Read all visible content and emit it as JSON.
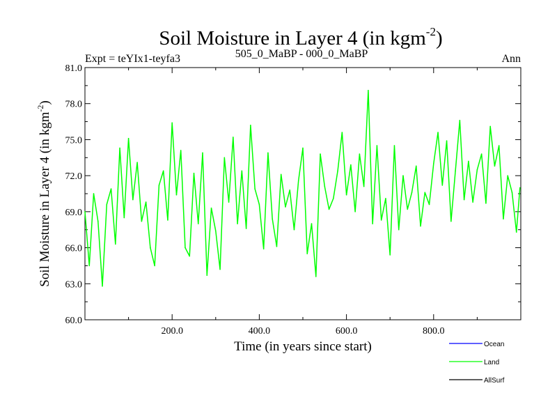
{
  "chart_data": {
    "type": "line",
    "title": "Soil Moisture in Layer 4 (in kgm",
    "title_superscript": "-2",
    "title_close": ")",
    "subtitle_left": "Expt = teYIx1-teyfa3",
    "subtitle_center": "505_0_MaBP - 000_0_MaBP",
    "subtitle_right": "Ann",
    "xlabel": "Time (in years since start)",
    "ylabel": "Soil Moisture in Layer 4 (in kgm",
    "ylabel_superscript": "-2",
    "ylabel_close": ")",
    "xlim": [
      0,
      1000
    ],
    "ylim": [
      60,
      81
    ],
    "xticks": [
      200,
      400,
      600,
      800
    ],
    "xtick_labels": [
      "200.0",
      "400.0",
      "600.0",
      "800.0"
    ],
    "yticks": [
      60,
      63,
      66,
      69,
      72,
      75,
      78,
      81
    ],
    "ytick_labels": [
      "60.0",
      "63.0",
      "66.0",
      "69.0",
      "72.0",
      "75.0",
      "78.0",
      "81.0"
    ],
    "series": [
      {
        "name": "Land",
        "color": "#00ff00",
        "x": [
          0,
          10,
          20,
          30,
          40,
          50,
          60,
          70,
          80,
          90,
          100,
          110,
          120,
          130,
          140,
          150,
          160,
          170,
          180,
          190,
          200,
          210,
          220,
          230,
          240,
          250,
          260,
          270,
          280,
          290,
          300,
          310,
          320,
          330,
          340,
          350,
          360,
          370,
          380,
          390,
          400,
          410,
          420,
          430,
          440,
          450,
          460,
          470,
          480,
          490,
          500,
          510,
          520,
          530,
          540,
          550,
          560,
          570,
          580,
          590,
          600,
          610,
          620,
          630,
          640,
          650,
          660,
          670,
          680,
          690,
          700,
          710,
          720,
          730,
          740,
          750,
          760,
          770,
          780,
          790,
          800,
          810,
          820,
          830,
          840,
          850,
          860,
          870,
          880,
          890,
          900,
          910,
          920,
          930,
          940,
          950,
          960,
          970,
          980,
          990,
          998
        ],
        "values": [
          69.0,
          64.5,
          70.5,
          68.2,
          62.8,
          69.6,
          70.9,
          66.3,
          74.3,
          68.5,
          75.1,
          70.0,
          73.1,
          68.2,
          69.8,
          66.0,
          64.5,
          71.2,
          72.4,
          68.3,
          76.4,
          70.4,
          74.1,
          66.0,
          65.3,
          72.2,
          68.0,
          73.9,
          63.7,
          69.3,
          67.4,
          64.2,
          73.5,
          69.8,
          75.2,
          68.0,
          72.4,
          67.6,
          76.2,
          70.9,
          69.6,
          65.9,
          73.9,
          68.4,
          66.1,
          72.1,
          69.4,
          70.8,
          67.5,
          71.6,
          74.3,
          65.5,
          68.0,
          63.6,
          73.8,
          71.1,
          69.2,
          70.1,
          72.4,
          75.6,
          70.4,
          72.9,
          69.0,
          73.8,
          71.1,
          79.1,
          68.0,
          74.5,
          68.3,
          70.1,
          65.4,
          74.5,
          67.5,
          72.0,
          69.2,
          70.6,
          72.8,
          67.8,
          70.6,
          69.6,
          73.0,
          75.6,
          71.2,
          74.9,
          68.2,
          72.4,
          76.6,
          70.0,
          73.2,
          69.8,
          72.5,
          73.8,
          69.7,
          76.1,
          72.8,
          74.5,
          68.4,
          72.0,
          70.6,
          67.3,
          71.0
        ]
      },
      {
        "name": "Ocean",
        "color": "#0000ff",
        "x": [],
        "values": []
      },
      {
        "name": "AllSurf",
        "color": "#000000",
        "x": [],
        "values": []
      }
    ],
    "legend": [
      {
        "label": "Ocean",
        "color": "#0000ff"
      },
      {
        "label": "Land",
        "color": "#00ff00"
      },
      {
        "label": "AllSurf",
        "color": "#000000"
      }
    ],
    "legend_position": "bottom-right"
  }
}
